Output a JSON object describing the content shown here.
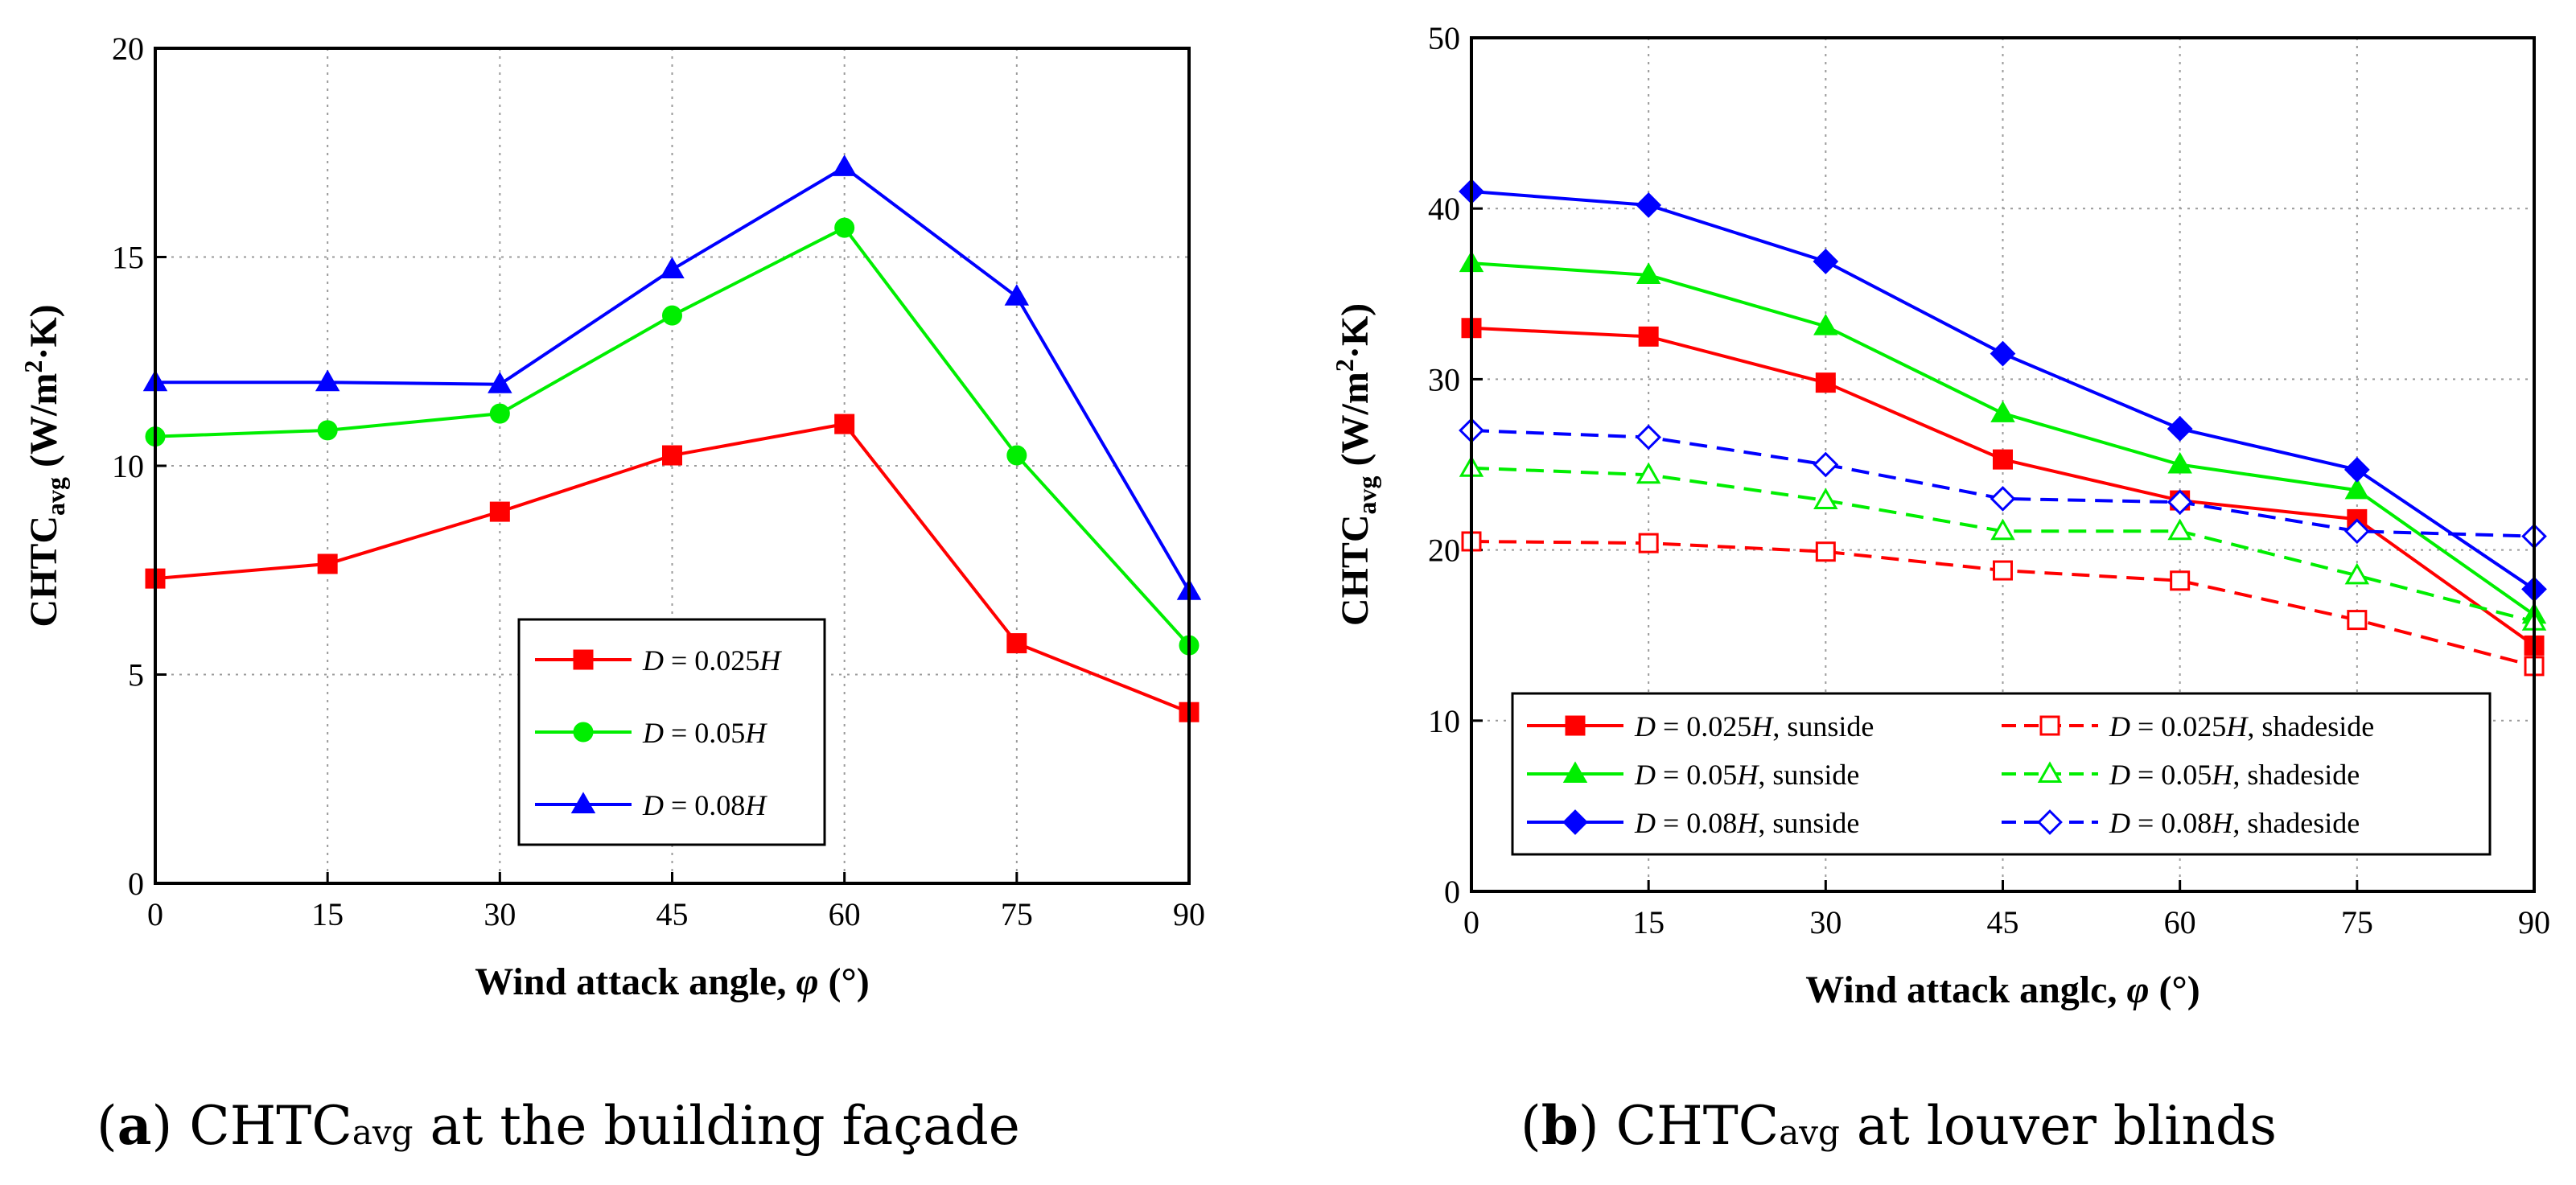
{
  "chart_data": [
    {
      "type": "line",
      "panel": "a",
      "xlabel_pre": "Wind attack angle, ",
      "xlabel_sym": "φ",
      "xlabel_post": " (°)",
      "ylabel_main": "CHTC",
      "ylabel_sub": "avg",
      "ylabel_unit_pre": " (W/m",
      "ylabel_unit_sup": "2",
      "ylabel_unit_post": "·K)",
      "xlim": [
        0,
        90
      ],
      "ylim": [
        0,
        20
      ],
      "xticks": [
        0,
        15,
        30,
        45,
        60,
        75,
        90
      ],
      "yticks": [
        0,
        5,
        10,
        15,
        20
      ],
      "grid": true,
      "legend_position": "center-bottom",
      "x": [
        0,
        15,
        30,
        45,
        60,
        75,
        90
      ],
      "series": [
        {
          "name_var": "D",
          "name_rest": " = 0.025",
          "name_var2": "H",
          "name_tail": "",
          "color": "#ff0000",
          "marker": "square",
          "filled": true,
          "dashed": false,
          "values": [
            7.3,
            7.65,
            8.9,
            10.25,
            11.0,
            5.75,
            4.1
          ]
        },
        {
          "name_var": "D",
          "name_rest": " = 0.05",
          "name_var2": "H",
          "name_tail": "",
          "color": "#00ee00",
          "marker": "circle",
          "filled": true,
          "dashed": false,
          "values": [
            10.7,
            10.85,
            11.25,
            13.6,
            15.7,
            10.25,
            5.7
          ]
        },
        {
          "name_var": "D",
          "name_rest": " = 0.08",
          "name_var2": "H",
          "name_tail": "",
          "color": "#0000ff",
          "marker": "triangle",
          "filled": true,
          "dashed": false,
          "values": [
            12.0,
            12.0,
            11.95,
            14.7,
            17.15,
            14.05,
            7.0
          ]
        }
      ],
      "caption_label": "a",
      "caption_main": "CHTC",
      "caption_sub": "avg",
      "caption_rest": " at the building façade"
    },
    {
      "type": "line",
      "panel": "b",
      "xlabel_pre": "Wind attack anglc, ",
      "xlabel_sym": "φ",
      "xlabel_post": " (°)",
      "ylabel_main": "CHTC",
      "ylabel_sub": "avg",
      "ylabel_unit_pre": " (W/m",
      "ylabel_unit_sup": "2",
      "ylabel_unit_post": "·K)",
      "xlim": [
        0,
        90
      ],
      "ylim": [
        0,
        50
      ],
      "xticks": [
        0,
        15,
        30,
        45,
        60,
        75,
        90
      ],
      "yticks": [
        0,
        10,
        20,
        30,
        40,
        50
      ],
      "grid": true,
      "legend_position": "bottom",
      "x": [
        0,
        15,
        30,
        45,
        60,
        75,
        90
      ],
      "series": [
        {
          "name_var": "D",
          "name_rest": " = 0.025",
          "name_var2": "H",
          "name_tail": ", sunside",
          "color": "#ff0000",
          "marker": "square",
          "filled": true,
          "dashed": false,
          "values": [
            33.0,
            32.5,
            29.8,
            25.3,
            22.9,
            21.8,
            14.4
          ]
        },
        {
          "name_var": "D",
          "name_rest": " = 0.025",
          "name_var2": "H",
          "name_tail": ", shadeside",
          "color": "#ff0000",
          "marker": "square",
          "filled": false,
          "dashed": true,
          "values": [
            20.5,
            20.4,
            19.9,
            18.8,
            18.2,
            15.9,
            13.2
          ]
        },
        {
          "name_var": "D",
          "name_rest": " = 0.05",
          "name_var2": "H",
          "name_tail": ", sunside",
          "color": "#00ee00",
          "marker": "triangle",
          "filled": true,
          "dashed": false,
          "values": [
            36.8,
            36.1,
            33.1,
            28.0,
            25.0,
            23.5,
            16.2
          ]
        },
        {
          "name_var": "D",
          "name_rest": " = 0.05",
          "name_var2": "H",
          "name_tail": ", shadeside",
          "color": "#00ee00",
          "marker": "triangle",
          "filled": false,
          "dashed": true,
          "values": [
            24.8,
            24.4,
            22.9,
            21.1,
            21.1,
            18.5,
            15.8
          ]
        },
        {
          "name_var": "D",
          "name_rest": " = 0.08",
          "name_var2": "H",
          "name_tail": ", sunside",
          "color": "#0000ff",
          "marker": "diamond",
          "filled": true,
          "dashed": false,
          "values": [
            41.0,
            40.2,
            36.9,
            31.5,
            27.1,
            24.7,
            17.7
          ]
        },
        {
          "name_var": "D",
          "name_rest": " = 0.08",
          "name_var2": "H",
          "name_tail": ", shadeside",
          "color": "#0000ff",
          "marker": "diamond",
          "filled": false,
          "dashed": true,
          "values": [
            27.0,
            26.6,
            25.0,
            23.0,
            22.8,
            21.1,
            20.8
          ]
        }
      ],
      "caption_label": "b",
      "caption_main": "CHTC",
      "caption_sub": "avg",
      "caption_rest": " at louver blinds"
    }
  ]
}
